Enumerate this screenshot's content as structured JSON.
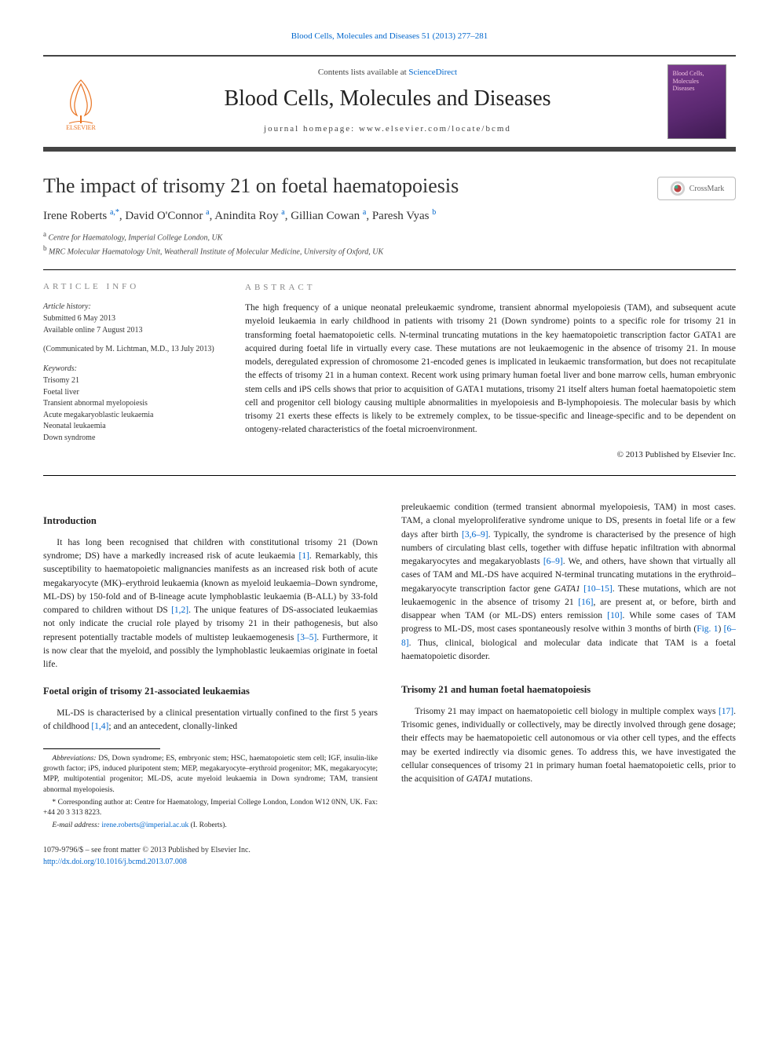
{
  "crumb": "Blood Cells, Molecules and Diseases 51 (2013) 277–281",
  "banner": {
    "contents_prefix": "Contents lists available at ",
    "contents_link": "ScienceDirect",
    "journal": "Blood Cells, Molecules and Diseases",
    "homepage": "journal homepage: www.elsevier.com/locate/bcmd"
  },
  "article": {
    "title": "The impact of trisomy 21 on foetal haematopoiesis",
    "crossmark": "CrossMark",
    "authors_html": "Irene Roberts <sup>a,*</sup>, David O'Connor <sup>a</sup>, Anindita Roy <sup>a</sup>, Gillian Cowan <sup>a</sup>, Paresh Vyas <sup>b</sup>",
    "affiliations": [
      {
        "mark": "a",
        "text": "Centre for Haematology, Imperial College London, UK"
      },
      {
        "mark": "b",
        "text": "MRC Molecular Haematology Unit, Weatherall Institute of Molecular Medicine, University of Oxford, UK"
      }
    ]
  },
  "info": {
    "head": "ARTICLE INFO",
    "history_label": "Article history:",
    "submitted": "Submitted 6 May 2013",
    "available": "Available online 7 August 2013",
    "communicated": "(Communicated by M. Lichtman, M.D., 13 July 2013)",
    "keywords_label": "Keywords:",
    "keywords": [
      "Trisomy 21",
      "Foetal liver",
      "Transient abnormal myelopoiesis",
      "Acute megakaryoblastic leukaemia",
      "Neonatal leukaemia",
      "Down syndrome"
    ]
  },
  "abstract": {
    "head": "ABSTRACT",
    "text": "The high frequency of a unique neonatal preleukaemic syndrome, transient abnormal myelopoiesis (TAM), and subsequent acute myeloid leukaemia in early childhood in patients with trisomy 21 (Down syndrome) points to a specific role for trisomy 21 in transforming foetal haematopoietic cells. N-terminal truncating mutations in the key haematopoietic transcription factor GATA1 are acquired during foetal life in virtually every case. These mutations are not leukaemogenic in the absence of trisomy 21. In mouse models, deregulated expression of chromosome 21-encoded genes is implicated in leukaemic transformation, but does not recapitulate the effects of trisomy 21 in a human context. Recent work using primary human foetal liver and bone marrow cells, human embryonic stem cells and iPS cells shows that prior to acquisition of GATA1 mutations, trisomy 21 itself alters human foetal haematopoietic stem cell and progenitor cell biology causing multiple abnormalities in myelopoiesis and B-lymphopoiesis. The molecular basis by which trisomy 21 exerts these effects is likely to be extremely complex, to be tissue-specific and lineage-specific and to be dependent on ontogeny-related characteristics of the foetal microenvironment.",
    "copyright": "© 2013 Published by Elsevier Inc."
  },
  "body": {
    "intro_head": "Introduction",
    "intro_p1": "It has long been recognised that children with constitutional trisomy 21 (Down syndrome; DS) have a markedly increased risk of acute leukaemia [1]. Remarkably, this susceptibility to haematopoietic malignancies manifests as an increased risk both of acute megakaryocyte (MK)–erythroid leukaemia (known as myeloid leukaemia–Down syndrome, ML-DS) by 150-fold and of B-lineage acute lymphoblastic leukaemia (B-ALL) by 33-fold compared to children without DS [1,2]. The unique features of DS-associated leukaemias not only indicate the crucial role played by trisomy 21 in their pathogenesis, but also represent potentially tractable models of multistep leukaemogenesis [3–5]. Furthermore, it is now clear that the myeloid, and possibly the lymphoblastic leukaemias originate in foetal life.",
    "foetal_head": "Foetal origin of trisomy 21-associated leukaemias",
    "foetal_p1": "ML-DS is characterised by a clinical presentation virtually confined to the first 5 years of childhood [1,4]; and an antecedent, clonally-linked",
    "col2_p1": "preleukaemic condition (termed transient abnormal myelopoiesis, TAM) in most cases. TAM, a clonal myeloproliferative syndrome unique to DS, presents in foetal life or a few days after birth [3,6–9]. Typically, the syndrome is characterised by the presence of high numbers of circulating blast cells, together with diffuse hepatic infiltration with abnormal megakaryocytes and megakaryoblasts [6–9]. We, and others, have shown that virtually all cases of TAM and ML-DS have acquired N-terminal truncating mutations in the erythroid–megakaryocyte transcription factor gene GATA1 [10–15]. These mutations, which are not leukaemogenic in the absence of trisomy 21 [16], are present at, or before, birth and disappear when TAM (or ML-DS) enters remission [10]. While some cases of TAM progress to ML-DS, most cases spontaneously resolve within 3 months of birth (Fig. 1) [6–8]. Thus, clinical, biological and molecular data indicate that TAM is a foetal haematopoietic disorder.",
    "t21_head": "Trisomy 21 and human foetal haematopoiesis",
    "t21_p1": "Trisomy 21 may impact on haematopoietic cell biology in multiple complex ways [17]. Trisomic genes, individually or collectively, may be directly involved through gene dosage; their effects may be haematopoietic cell autonomous or via other cell types, and the effects may be exerted indirectly via disomic genes. To address this, we have investigated the cellular consequences of trisomy 21 in primary human foetal haematopoietic cells, prior to the acquisition of GATA1 mutations."
  },
  "footnotes": {
    "abbrev_label": "Abbreviations:",
    "abbrev": "DS, Down syndrome; ES, embryonic stem; HSC, haematopoietic stem cell; IGF, insulin-like growth factor; iPS, induced pluripotent stem; MEP, megakaryocyte–erythroid progenitor; MK, megakaryocyte; MPP, multipotential progenitor; ML-DS, acute myeloid leukaemia in Down syndrome; TAM, transient abnormal myelopoiesis.",
    "corr": "* Corresponding author at: Centre for Haematology, Imperial College London, London W12 0NN, UK. Fax: +44 20 3 313 8223.",
    "email_label": "E-mail address:",
    "email": "irene.roberts@imperial.ac.uk",
    "email_suffix": "(I. Roberts)."
  },
  "footer": {
    "issn": "1079-9796/$ – see front matter © 2013 Published by Elsevier Inc.",
    "doi": "http://dx.doi.org/10.1016/j.bcmd.2013.07.008"
  },
  "colors": {
    "link": "#0066cc",
    "rule": "#000000",
    "muted": "#888888",
    "text": "#222222"
  }
}
